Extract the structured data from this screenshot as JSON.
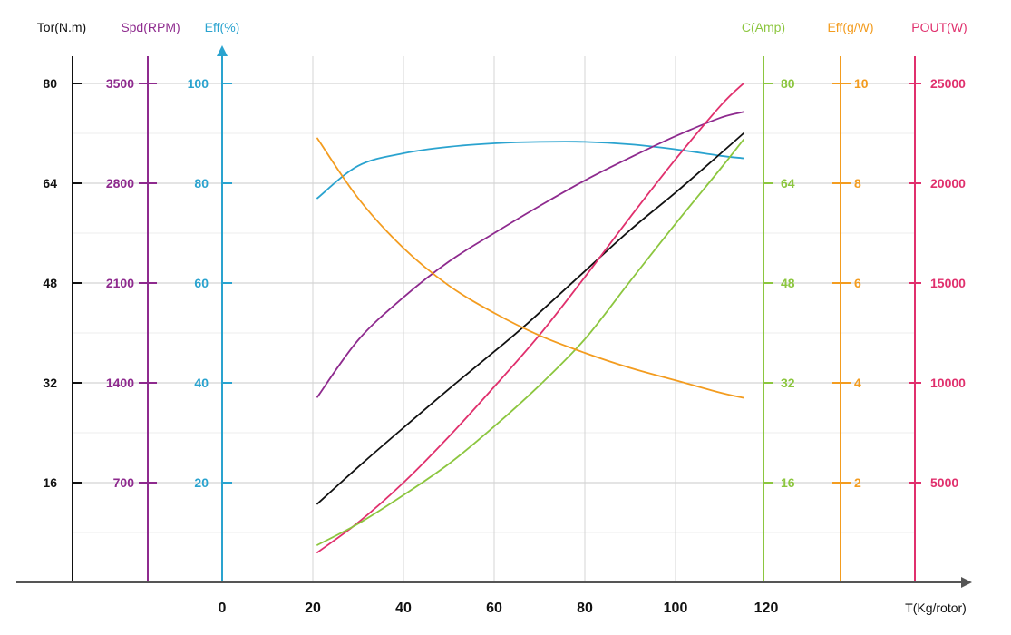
{
  "chart_data": {
    "type": "line",
    "x_axis": {
      "label": "T(Kg/rotor)",
      "ticks": [
        "0",
        "20",
        "40",
        "60",
        "80",
        "100",
        "120"
      ],
      "range": [
        0,
        120
      ]
    },
    "y_axes": [
      {
        "key": "tor",
        "label": "Tor(N.m)",
        "color": "#111111",
        "range": [
          0,
          80
        ],
        "ticks": [
          "16",
          "32",
          "48",
          "64",
          "80"
        ]
      },
      {
        "key": "spd",
        "label": "Spd(RPM)",
        "color": "#8e2a8e",
        "range": [
          0,
          3500
        ],
        "ticks": [
          "700",
          "1400",
          "2100",
          "2800",
          "3500"
        ]
      },
      {
        "key": "eff",
        "label": "Eff(%)",
        "color": "#2aa3cf",
        "range": [
          0,
          100
        ],
        "ticks": [
          "20",
          "40",
          "60",
          "80",
          "100"
        ]
      },
      {
        "key": "c",
        "label": "C(Amp)",
        "color": "#8cc63f",
        "range": [
          0,
          80
        ],
        "ticks": [
          "16",
          "32",
          "48",
          "64",
          "80"
        ]
      },
      {
        "key": "effgw",
        "label": "Eff(g/W)",
        "color": "#f39c1f",
        "range": [
          0,
          10
        ],
        "ticks": [
          "2",
          "4",
          "6",
          "8",
          "10"
        ]
      },
      {
        "key": "pout",
        "label": "POUT(W)",
        "color": "#e0306d",
        "range": [
          0,
          25000
        ],
        "ticks": [
          "5000",
          "10000",
          "15000",
          "20000",
          "25000"
        ]
      }
    ],
    "series": [
      {
        "name": "Eff(%)",
        "axis": "eff",
        "color": "#2aa3cf",
        "x": [
          21,
          30,
          40,
          50,
          60,
          70,
          80,
          90,
          100,
          110,
          115
        ],
        "y": [
          77,
          83.5,
          86,
          87.3,
          88,
          88.3,
          88.3,
          87.8,
          86.8,
          85.5,
          85
        ]
      },
      {
        "name": "Spd(RPM)",
        "axis": "spd",
        "color": "#8e2a8e",
        "x": [
          21,
          30,
          40,
          50,
          60,
          70,
          80,
          90,
          100,
          110,
          115
        ],
        "y": [
          1300,
          1700,
          2000,
          2250,
          2450,
          2640,
          2820,
          2980,
          3130,
          3260,
          3300
        ]
      },
      {
        "name": "Tor(N.m)",
        "axis": "tor",
        "color": "#111111",
        "x": [
          21,
          30,
          40,
          50,
          60,
          67,
          80,
          90,
          100,
          110,
          115
        ],
        "y": [
          12.6,
          18.5,
          24.8,
          31,
          37,
          41.3,
          49.9,
          56.5,
          62.5,
          68.8,
          72
        ]
      },
      {
        "name": "POUT(W)",
        "axis": "pout",
        "color": "#e0306d",
        "x": [
          21,
          30,
          40,
          50,
          60,
          70,
          80,
          90,
          100,
          110,
          115
        ],
        "y": [
          1500,
          3000,
          5000,
          7300,
          9800,
          12400,
          15300,
          18300,
          21200,
          23900,
          25000
        ]
      },
      {
        "name": "C(Amp)",
        "axis": "c",
        "color": "#8cc63f",
        "x": [
          21,
          30,
          40,
          50,
          60,
          70,
          80,
          90,
          100,
          110,
          115
        ],
        "y": [
          6,
          9.4,
          14,
          19,
          25,
          31.6,
          39,
          48.3,
          57.5,
          66.4,
          71
        ]
      },
      {
        "name": "Eff(g/W)",
        "axis": "effgw",
        "color": "#f39c1f",
        "x": [
          21,
          30,
          40,
          50,
          60,
          70,
          80,
          90,
          100,
          110,
          115
        ],
        "y": [
          8.9,
          7.7,
          6.7,
          5.95,
          5.4,
          4.95,
          4.6,
          4.3,
          4.05,
          3.8,
          3.7
        ]
      }
    ],
    "grid": true
  }
}
